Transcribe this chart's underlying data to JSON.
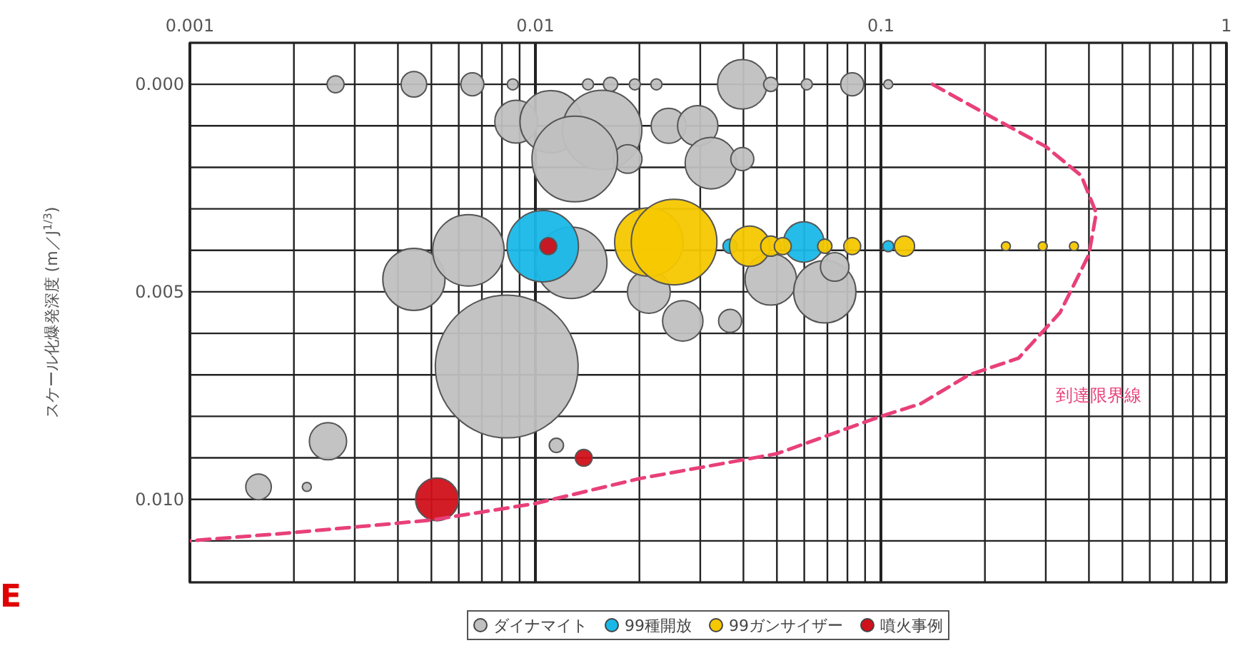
{
  "chart_data": {
    "type": "bubble",
    "ylabel": "スケール化爆発深度 (m／J$^{1/3}$)",
    "log": "x",
    "grid": true,
    "legend": "bottom",
    "xlim": [
      0.001,
      1
    ],
    "ylim": [
      0.012,
      -0.001
    ],
    "xticks": [
      0.001,
      {
        "value": 0.002,
        "label": null
      },
      {
        "value": 0.003,
        "label": null
      },
      {
        "value": 0.004,
        "label": null
      },
      {
        "value": 0.005,
        "label": null
      },
      {
        "value": 0.006,
        "label": null
      },
      {
        "value": 0.007,
        "label": null
      },
      {
        "value": 0.008,
        "label": null
      },
      {
        "value": 0.009,
        "label": null
      },
      0.01,
      {
        "value": 0.02,
        "label": null
      },
      {
        "value": 0.03,
        "label": null
      },
      {
        "value": 0.04,
        "label": null
      },
      {
        "value": 0.05,
        "label": null
      },
      {
        "value": 0.06,
        "label": null
      },
      {
        "value": 0.07,
        "label": null
      },
      {
        "value": 0.08,
        "label": null
      },
      {
        "value": 0.09,
        "label": null
      },
      0.1,
      {
        "value": 0.2,
        "label": null
      },
      {
        "value": 0.3,
        "label": null
      },
      {
        "value": 0.4,
        "label": null
      },
      {
        "value": 0.5,
        "label": null
      },
      {
        "value": 0.6,
        "label": null
      },
      {
        "value": 0.7,
        "label": null
      },
      {
        "value": 0.8,
        "label": null
      },
      {
        "value": 0.9,
        "label": null
      },
      1
    ],
    "yticks": [
      {
        "value": -0.001,
        "label": null
      },
      {
        "value": 0,
        "label": "0.000"
      },
      {
        "value": 0.001,
        "label": null
      },
      {
        "value": 0.002,
        "label": null
      },
      {
        "value": 0.003,
        "label": null
      },
      {
        "value": 0.004,
        "label": null
      },
      {
        "value": 0.005,
        "label": "0.005"
      },
      {
        "value": 0.006,
        "label": null
      },
      {
        "value": 0.007,
        "label": null
      },
      {
        "value": 0.008,
        "label": null
      },
      {
        "value": 0.009,
        "label": null
      },
      {
        "value": 0.01,
        "label": "0.010"
      },
      {
        "value": 0.011,
        "label": null
      },
      {
        "value": 0.012,
        "label": null
      }
    ],
    "annotations": [
      "E"
    ],
    "series": [
      {
        "name": "ダイナマイト",
        "color": "#c0c0c0",
        "x": [
          0.00264,
          0.00445,
          0.00657,
          0.0086,
          0.0142,
          0.0165,
          0.0194,
          0.0224,
          0.0397,
          0.048,
          0.061,
          0.0826,
          0.105,
          0.0088,
          0.0111,
          0.0156,
          0.0185,
          0.0243,
          0.0295,
          0.0322,
          0.0397,
          0.013,
          0.00445,
          0.0064,
          0.0127,
          0.00826,
          0.0213,
          0.0267,
          0.0366,
          0.048,
          0.0688,
          0.0735,
          0.00251,
          0.00158,
          0.00218,
          0.0115
        ],
        "values": [
          0,
          0,
          0,
          0,
          0,
          0,
          0,
          0,
          0,
          0,
          0,
          0,
          0,
          0.0009,
          0.0009,
          0.0011,
          0.0018,
          0.001,
          0.001,
          0.0019,
          0.0018,
          0.0018,
          0.0047,
          0.004,
          0.0043,
          0.0068,
          0.005,
          0.0057,
          0.0057,
          0.0047,
          0.005,
          0.0044,
          0.0086,
          0.0097,
          0.0097,
          0.0087
        ],
        "sizes": [
          0.014,
          0.032,
          0.026,
          0.006,
          0.006,
          0.01,
          0.006,
          0.006,
          0.12,
          0.01,
          0.006,
          0.026,
          0.004,
          0.09,
          0.19,
          0.31,
          0.04,
          0.06,
          0.08,
          0.13,
          0.026,
          0.36,
          0.19,
          0.25,
          0.25,
          1,
          0.09,
          0.08,
          0.026,
          0.13,
          0.19,
          0.04,
          0.068,
          0.032,
          0.004,
          0.01
        ]
      },
      {
        "name": "99種開放",
        "color": "#1ab8e8",
        "x": [
          0.0105,
          0.0598,
          0.0366,
          0.105
        ],
        "values": [
          0.0039,
          0.0038,
          0.0039,
          0.0039
        ],
        "sizes": [
          0.25,
          0.08,
          0.01,
          0.006
        ]
      },
      {
        "name": "99ガンサイザー",
        "color": "#f5c800",
        "x": [
          0.0213,
          0.0252,
          0.0417,
          0.048,
          0.052,
          0.0688,
          0.0826,
          0.117,
          0.23,
          0.294,
          0.362
        ],
        "values": [
          0.0038,
          0.0038,
          0.0039,
          0.0039,
          0.0039,
          0.0039,
          0.0039,
          0.0039,
          0.0039,
          0.0039,
          0.0039
        ],
        "sizes": [
          0.23,
          0.36,
          0.08,
          0.02,
          0.014,
          0.01,
          0.014,
          0.02,
          0.004,
          0.004,
          0.004
        ]
      },
      {
        "name": "噴火事例",
        "color": "#d0101a",
        "x": [
          0.0109,
          0.0138,
          0.00519
        ],
        "values": [
          0.0039,
          0.009,
          0.01
        ],
        "sizes": [
          0.014,
          0.014,
          0.09
        ]
      },
      {
        "name": "到達限界線",
        "type": "line",
        "line_style": "dashed",
        "color": "#e8407a",
        "x": [
          0.141,
          0.2,
          0.3,
          0.38,
          0.42,
          0.4,
          0.33,
          0.25,
          0.18,
          0.13,
          0.1,
          0.05,
          0.02,
          0.01,
          0.005,
          0.002,
          0.001
        ],
        "values": [
          0,
          0.0007,
          0.0015,
          0.0022,
          0.0031,
          0.0041,
          0.0055,
          0.0066,
          0.007,
          0.0077,
          0.008,
          0.0089,
          0.0095,
          0.0101,
          0.0105,
          0.0108,
          0.011
        ]
      }
    ]
  }
}
